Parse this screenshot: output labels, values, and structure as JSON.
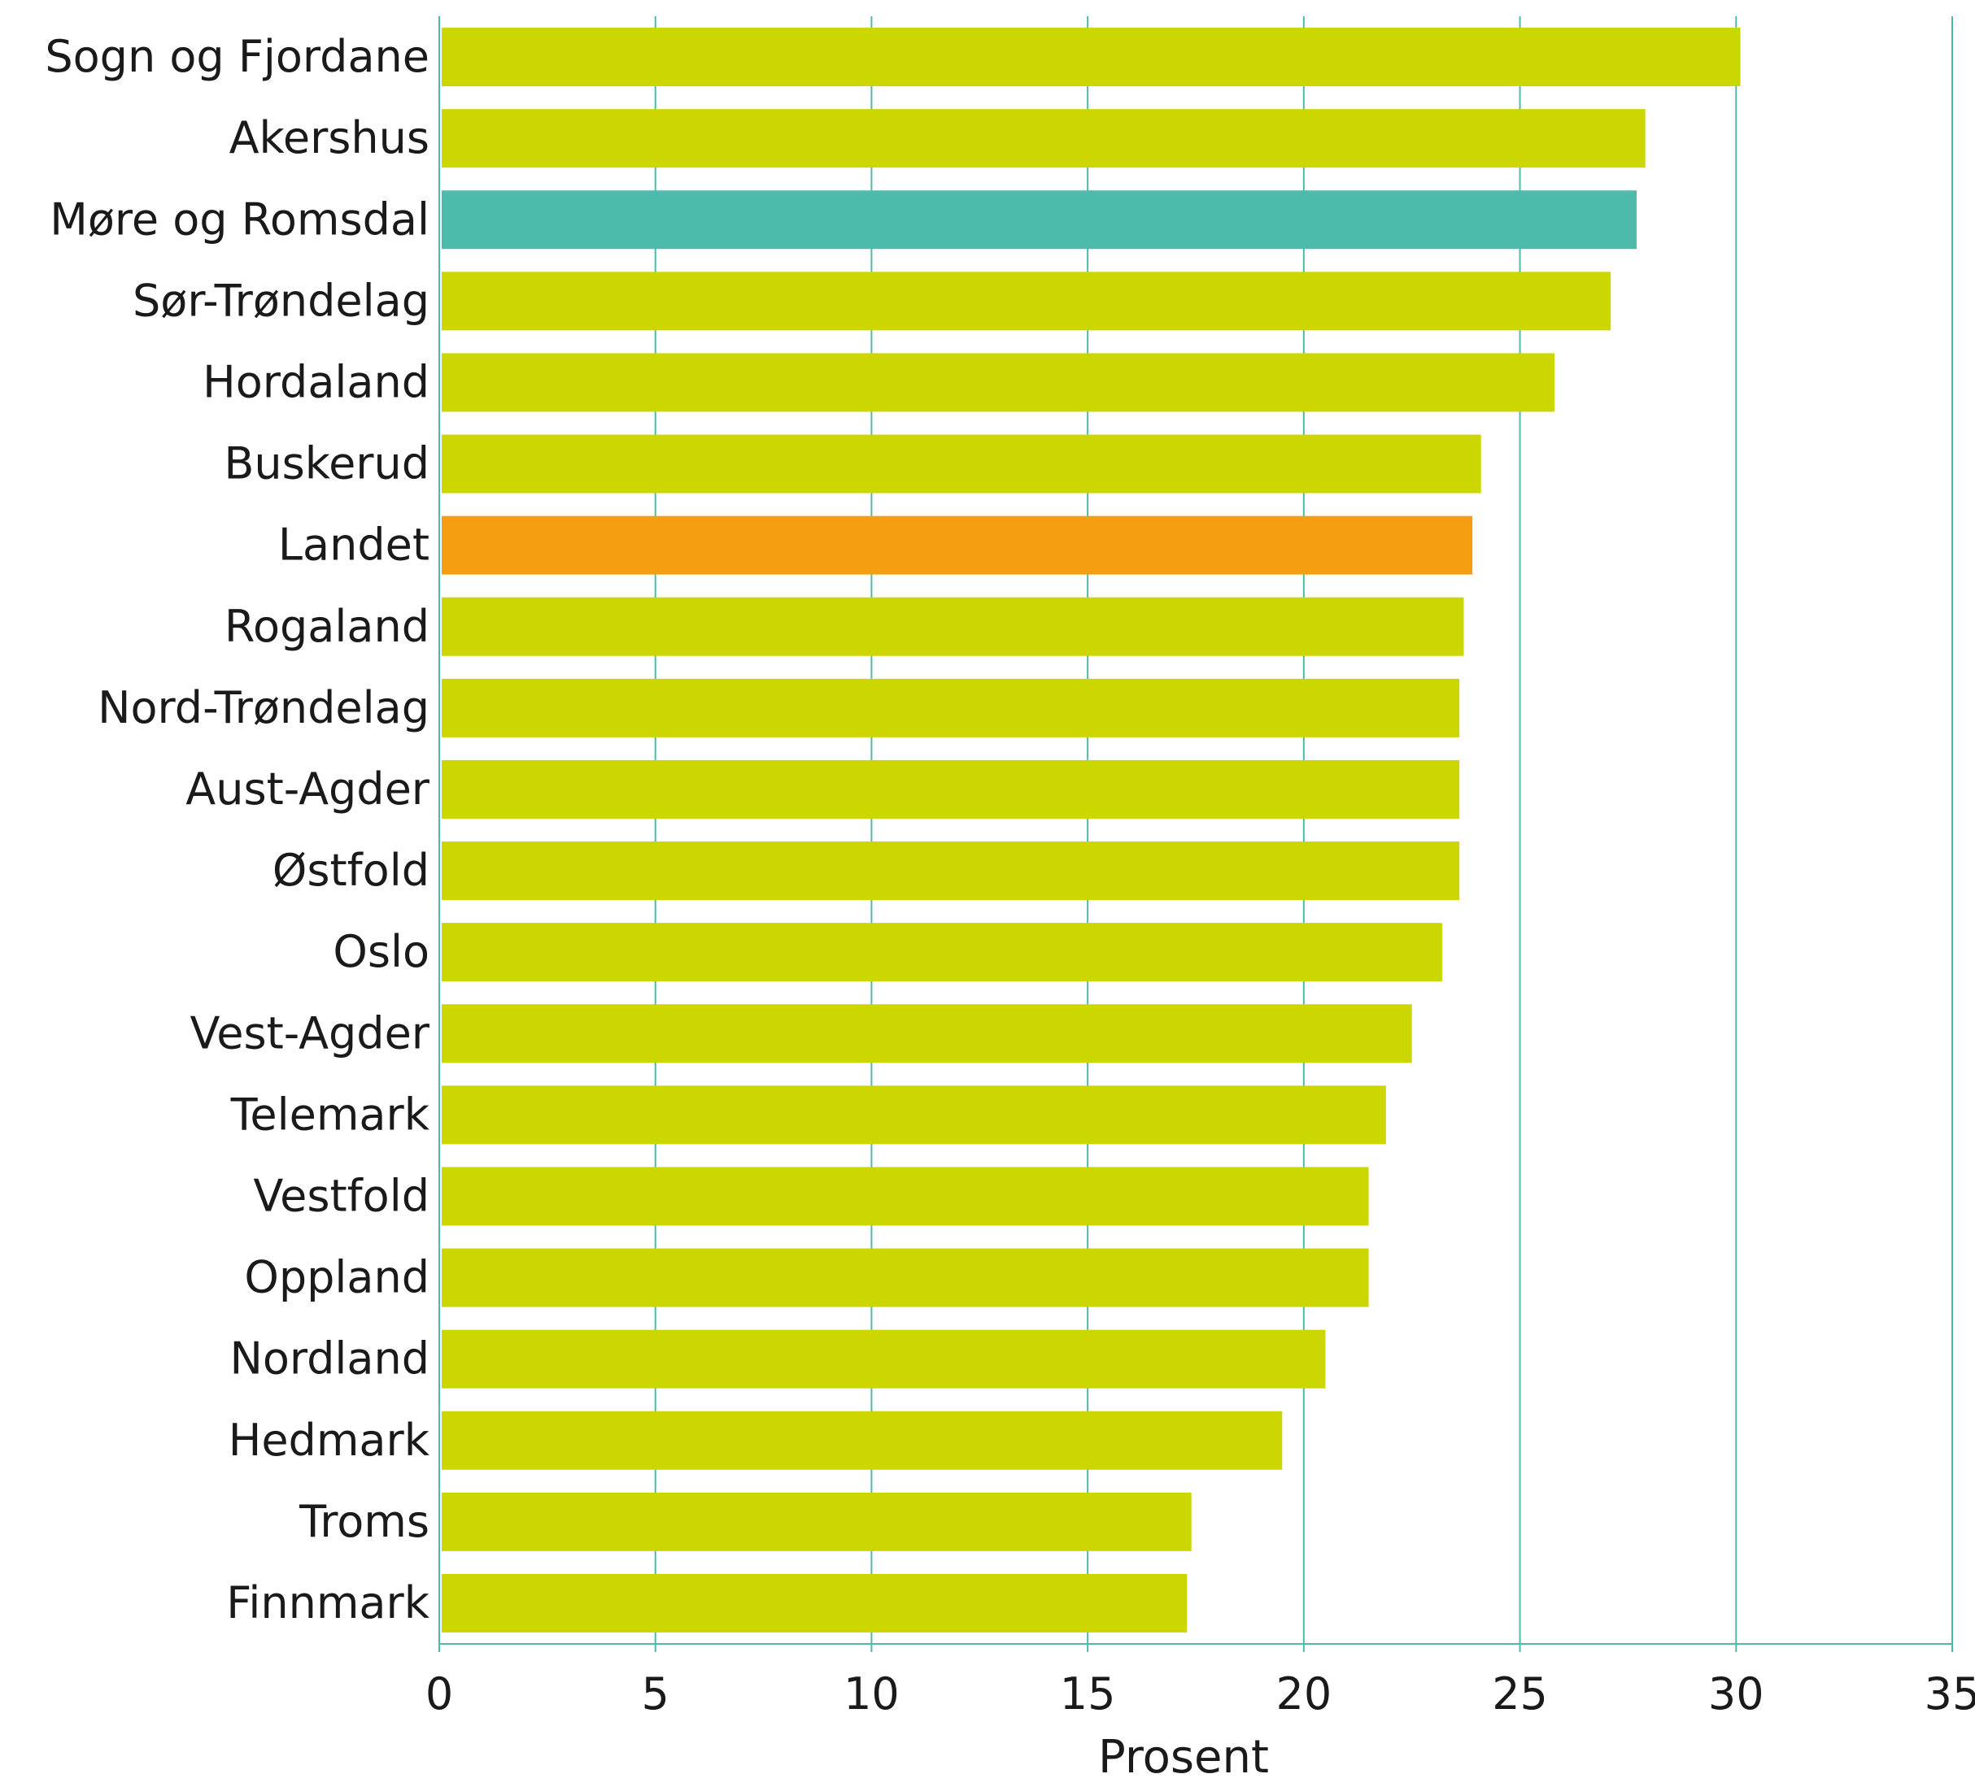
{
  "chart_data": {
    "type": "bar",
    "orientation": "horizontal",
    "categories": [
      "Sogn og Fjordane",
      "Akershus",
      "Møre og Romsdal",
      "Sør-Trøndelag",
      "Hordaland",
      "Buskerud",
      "Landet",
      "Rogaland",
      "Nord-Trøndelag",
      "Aust-Agder",
      "Østfold",
      "Oslo",
      "Vest-Agder",
      "Telemark",
      "Vestfold",
      "Oppland",
      "Nordland",
      "Hedmark",
      "Troms",
      "Finnmark"
    ],
    "values": [
      30.1,
      27.9,
      27.7,
      27.1,
      25.8,
      24.1,
      23.9,
      23.7,
      23.6,
      23.6,
      23.6,
      23.2,
      22.5,
      21.9,
      21.5,
      21.5,
      20.5,
      19.5,
      17.4,
      17.3
    ],
    "bar_colors": [
      "#ccd600",
      "#ccd600",
      "#4dbaac",
      "#ccd600",
      "#ccd600",
      "#ccd600",
      "#f59e12",
      "#ccd600",
      "#ccd600",
      "#ccd600",
      "#ccd600",
      "#ccd600",
      "#ccd600",
      "#ccd600",
      "#ccd600",
      "#ccd600",
      "#ccd600",
      "#ccd600",
      "#ccd600",
      "#ccd600"
    ],
    "xlim": [
      0,
      35
    ],
    "xticks": [
      0,
      5,
      10,
      15,
      20,
      25,
      30,
      35
    ],
    "xlabel": "Prosent",
    "ylabel": "",
    "title": "",
    "grid": true,
    "legend": false,
    "colors": {
      "default_bar": "#ccd600",
      "highlight_bar": "#4dbaac",
      "total_bar": "#f59e12",
      "gridline": "#4dbaac",
      "text": "#1a1a1a"
    }
  }
}
